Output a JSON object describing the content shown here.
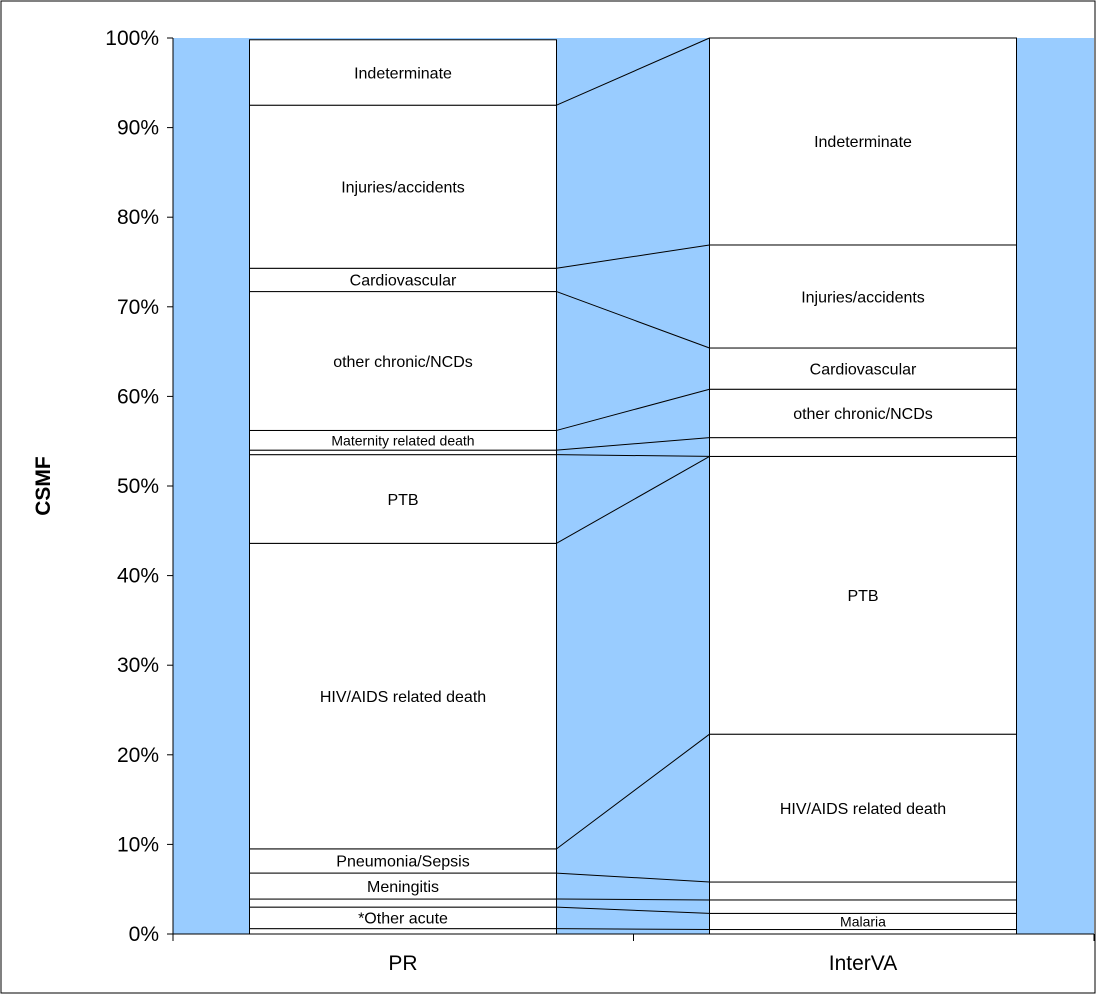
{
  "chart_data": {
    "type": "bar",
    "stacked": true,
    "percent_scale": true,
    "categories": [
      "PR",
      "InterVA"
    ],
    "ylabel": "CSMF",
    "ylim": [
      0,
      100
    ],
    "yticks": [
      "0%",
      "10%",
      "20%",
      "30%",
      "40%",
      "50%",
      "60%",
      "70%",
      "80%",
      "90%",
      "100%"
    ],
    "grid": false,
    "legend": "none",
    "background_color": "#99ccff",
    "segment_fill": "#ffffff",
    "segment_stroke": "#000000",
    "series": [
      {
        "values": [
          0.6,
          0.5
        ],
        "label": "",
        "labels": [
          "",
          ""
        ]
      },
      {
        "values": [
          2.4,
          1.8
        ],
        "label": "",
        "labels": [
          "*Other acute",
          "Malaria"
        ]
      },
      {
        "values": [
          0.9,
          1.5
        ],
        "label": "",
        "labels": [
          "",
          ""
        ]
      },
      {
        "values": [
          2.9,
          2.0
        ],
        "label": "",
        "labels": [
          "Meningitis",
          ""
        ]
      },
      {
        "values": [
          2.7,
          16.5
        ],
        "label": "",
        "labels": [
          "Pneumonia/Sepsis",
          "HIV/AIDS related death"
        ]
      },
      {
        "values": [
          34.1,
          31.0
        ],
        "label": "",
        "labels": [
          "HIV/AIDS related death",
          "PTB"
        ]
      },
      {
        "values": [
          9.9,
          0.0
        ],
        "label": "",
        "labels": [
          "PTB",
          ""
        ]
      },
      {
        "values": [
          0.5,
          2.1
        ],
        "label": "",
        "labels": [
          "",
          ""
        ]
      },
      {
        "values": [
          2.2,
          5.4
        ],
        "label": "",
        "labels": [
          "Maternity related death",
          "other chronic/NCDs"
        ]
      },
      {
        "values": [
          15.5,
          4.6
        ],
        "label": "",
        "labels": [
          "other chronic/NCDs",
          "Cardiovascular"
        ]
      },
      {
        "values": [
          2.6,
          11.5
        ],
        "label": "",
        "labels": [
          "Cardiovascular",
          "Injuries/accidents"
        ]
      },
      {
        "values": [
          18.2,
          23.1
        ],
        "label": "",
        "labels": [
          "Injuries/accidents",
          "Indeterminate"
        ]
      },
      {
        "values": [
          7.3,
          0.0
        ],
        "label": "",
        "labels": [
          "Indeterminate",
          ""
        ]
      }
    ]
  }
}
